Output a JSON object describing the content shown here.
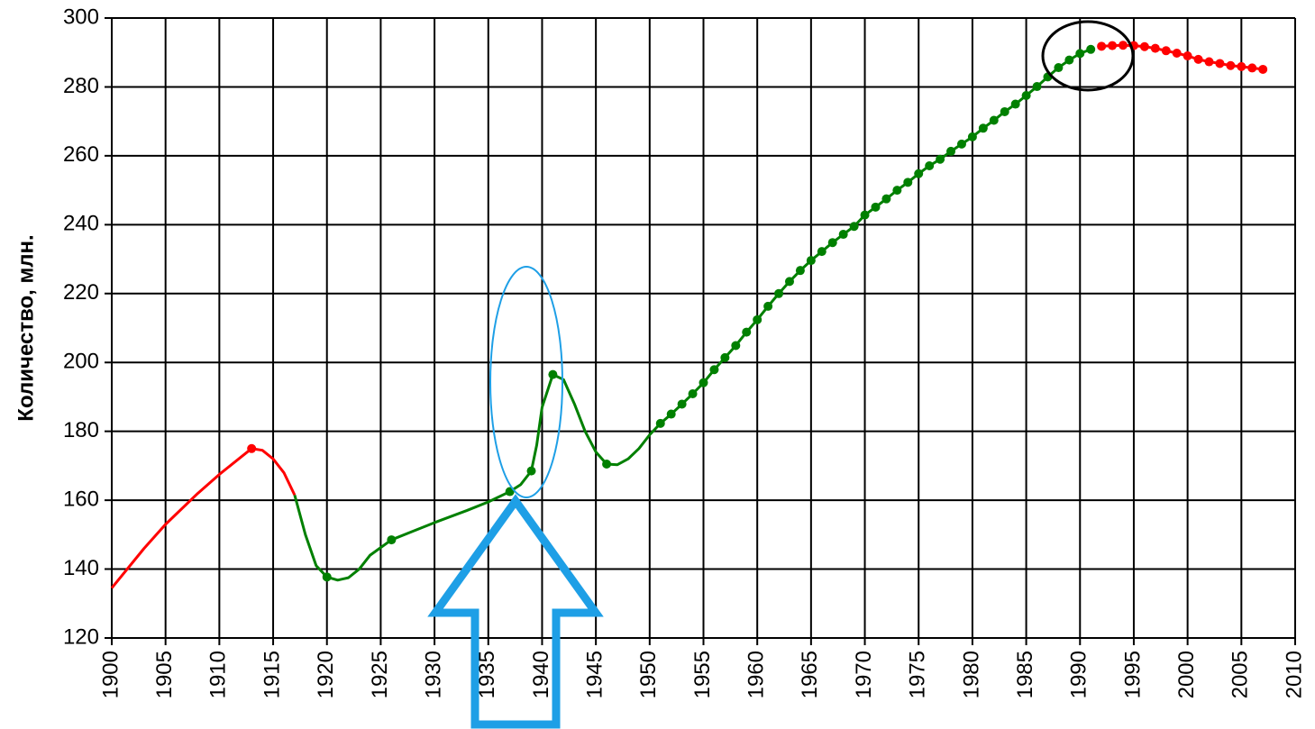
{
  "chart_data": {
    "type": "line",
    "y_label": "Количество, млн.",
    "xlim": [
      1900,
      2010
    ],
    "xticks": [
      1900,
      1905,
      1910,
      1915,
      1920,
      1925,
      1930,
      1935,
      1940,
      1945,
      1950,
      1955,
      1960,
      1965,
      1970,
      1975,
      1980,
      1985,
      1990,
      1995,
      2000,
      2005,
      2010
    ],
    "ylim": [
      120,
      300
    ],
    "yticks": [
      120,
      140,
      160,
      180,
      200,
      220,
      240,
      260,
      280,
      300
    ],
    "grid": true,
    "series": [
      {
        "color": "#ff0000",
        "line": true,
        "markers": false,
        "x": [
          1900,
          1903,
          1905,
          1908,
          1910,
          1912,
          1913,
          1914,
          1915,
          1916,
          1917
        ],
        "values": [
          134.5,
          146,
          153,
          162,
          167.5,
          172.5,
          175,
          174.5,
          172,
          168,
          161.5
        ]
      },
      {
        "color": "#ff0000",
        "line": false,
        "markers": true,
        "x": [
          1913
        ],
        "values": [
          175
        ]
      },
      {
        "color": "#008000",
        "line": true,
        "markers": false,
        "x": [
          1917,
          1918,
          1919,
          1920,
          1921,
          1922,
          1923,
          1924,
          1926,
          1928,
          1930,
          1933,
          1935,
          1937,
          1938,
          1939,
          1939.5,
          1940,
          1941,
          1942,
          1943,
          1944,
          1945,
          1946,
          1947,
          1948,
          1949,
          1950,
          1951,
          1952,
          1953,
          1954,
          1955,
          1956,
          1957,
          1958,
          1959,
          1960,
          1961,
          1962,
          1963,
          1964,
          1965,
          1966,
          1967,
          1968,
          1969,
          1970,
          1971,
          1972,
          1973,
          1974,
          1975,
          1976,
          1977,
          1978,
          1979,
          1980,
          1981,
          1982,
          1983,
          1984,
          1985,
          1986,
          1987,
          1988,
          1989,
          1990,
          1991
        ],
        "values": [
          161.5,
          150,
          141,
          137.7,
          136.8,
          137.5,
          140,
          144,
          148.5,
          151,
          153.5,
          157,
          159.5,
          162.5,
          164.5,
          168.5,
          176,
          187,
          196.5,
          195,
          188,
          180,
          174,
          170.5,
          170.3,
          172,
          175,
          179,
          182.3,
          185,
          187.9,
          190.9,
          194.1,
          197.9,
          201.4,
          204.9,
          208.8,
          212.4,
          216.3,
          220,
          223.5,
          226.7,
          229.6,
          232.2,
          234.8,
          237.2,
          239.5,
          242.8,
          245.1,
          247.5,
          250,
          252.3,
          254.8,
          257.1,
          259,
          261.3,
          263.4,
          265.5,
          268,
          270.3,
          272.8,
          275,
          277.5,
          280.1,
          282.9,
          285.6,
          287.8,
          289.7,
          290.9
        ]
      },
      {
        "color": "#008000",
        "line": false,
        "markers": true,
        "x": [
          1920,
          1926,
          1937,
          1939,
          1941,
          1946,
          1951,
          1952,
          1953,
          1954,
          1955,
          1956,
          1957,
          1958,
          1959,
          1960,
          1961,
          1962,
          1963,
          1964,
          1965,
          1966,
          1967,
          1968,
          1969,
          1970,
          1971,
          1972,
          1973,
          1974,
          1975,
          1976,
          1977,
          1978,
          1979,
          1980,
          1981,
          1982,
          1983,
          1984,
          1985,
          1986,
          1987,
          1988,
          1989,
          1990,
          1991
        ],
        "values": [
          137.7,
          148.5,
          162.5,
          168.5,
          196.5,
          170.5,
          182.3,
          185,
          187.9,
          190.9,
          194.1,
          197.9,
          201.4,
          204.9,
          208.8,
          212.4,
          216.3,
          220,
          223.5,
          226.7,
          229.6,
          232.2,
          234.8,
          237.2,
          239.5,
          242.8,
          245.1,
          247.5,
          250,
          252.3,
          254.8,
          257.1,
          259,
          261.3,
          263.4,
          265.5,
          268,
          270.3,
          272.8,
          275,
          277.5,
          280.1,
          282.9,
          285.6,
          287.8,
          289.7,
          290.9
        ]
      },
      {
        "color": "#ff0000",
        "line": true,
        "markers": true,
        "x": [
          1992,
          1993,
          1994,
          1995,
          1996,
          1997,
          1998,
          1999,
          2000,
          2001,
          2002,
          2003,
          2004,
          2005,
          2006,
          2007
        ],
        "values": [
          291.8,
          292,
          292.1,
          292,
          291.7,
          291.2,
          290.5,
          289.8,
          289,
          288,
          287.3,
          286.8,
          286.2,
          285.9,
          285.5,
          285.1
        ]
      }
    ]
  }
}
